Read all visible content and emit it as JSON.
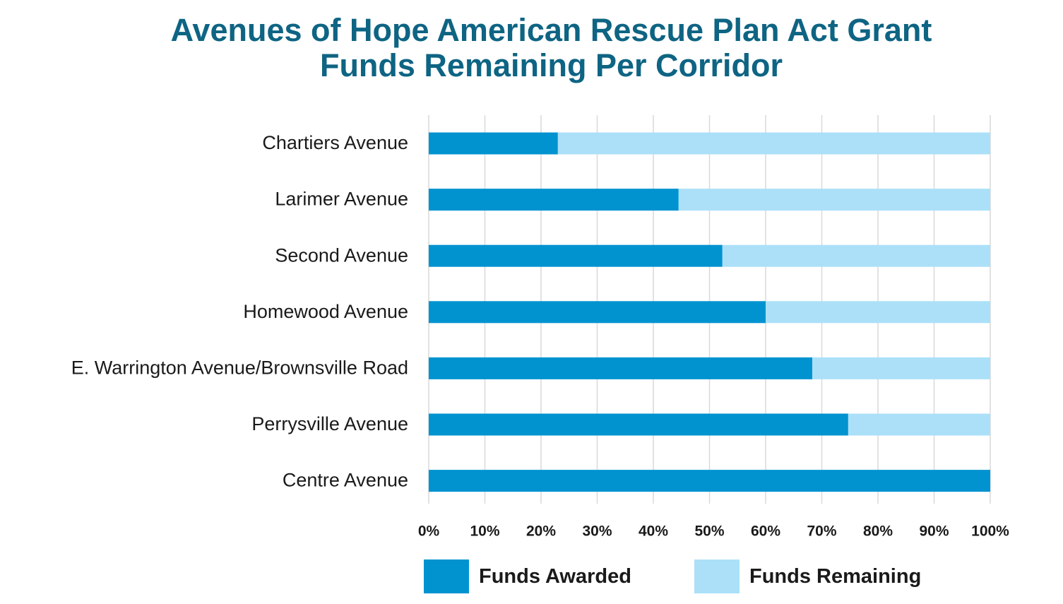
{
  "title_lines": [
    "Avenues of Hope American Rescue Plan Act Grant",
    "Funds Remaining Per Corridor"
  ],
  "colors": {
    "title": "#0e6483",
    "funds_awarded": "#0093d0",
    "funds_remaining": "#abe0f8",
    "grid": "#d9d9d9",
    "text": "#1a1a1a"
  },
  "legend": {
    "funds_awarded": "Funds Awarded",
    "funds_remaining": "Funds Remaining"
  },
  "chart_data": {
    "type": "bar",
    "orientation": "horizontal",
    "stacked": true,
    "title": "Avenues of Hope American Rescue Plan Act Grant Funds Remaining Per Corridor",
    "categories": [
      "Chartiers Avenue",
      "Larimer Avenue",
      "Second Avenue",
      "Homewood Avenue",
      "E. Warrington Avenue/Brownsville Road",
      "Perrysville Avenue",
      "Centre Avenue"
    ],
    "series": [
      {
        "name": "Funds Awarded",
        "values": [
          23,
          44.5,
          52.3,
          60,
          68.3,
          74.7,
          100
        ]
      },
      {
        "name": "Funds Remaining",
        "values": [
          77,
          55.5,
          47.7,
          40,
          31.7,
          25.3,
          0
        ]
      }
    ],
    "xlim": [
      0,
      100
    ],
    "x_ticks": [
      "0%",
      "10%",
      "20%",
      "30%",
      "40%",
      "50%",
      "60%",
      "70%",
      "80%",
      "90%",
      "100%"
    ],
    "xlabel": "",
    "ylabel": "",
    "grid": true,
    "legend_position": "bottom"
  }
}
